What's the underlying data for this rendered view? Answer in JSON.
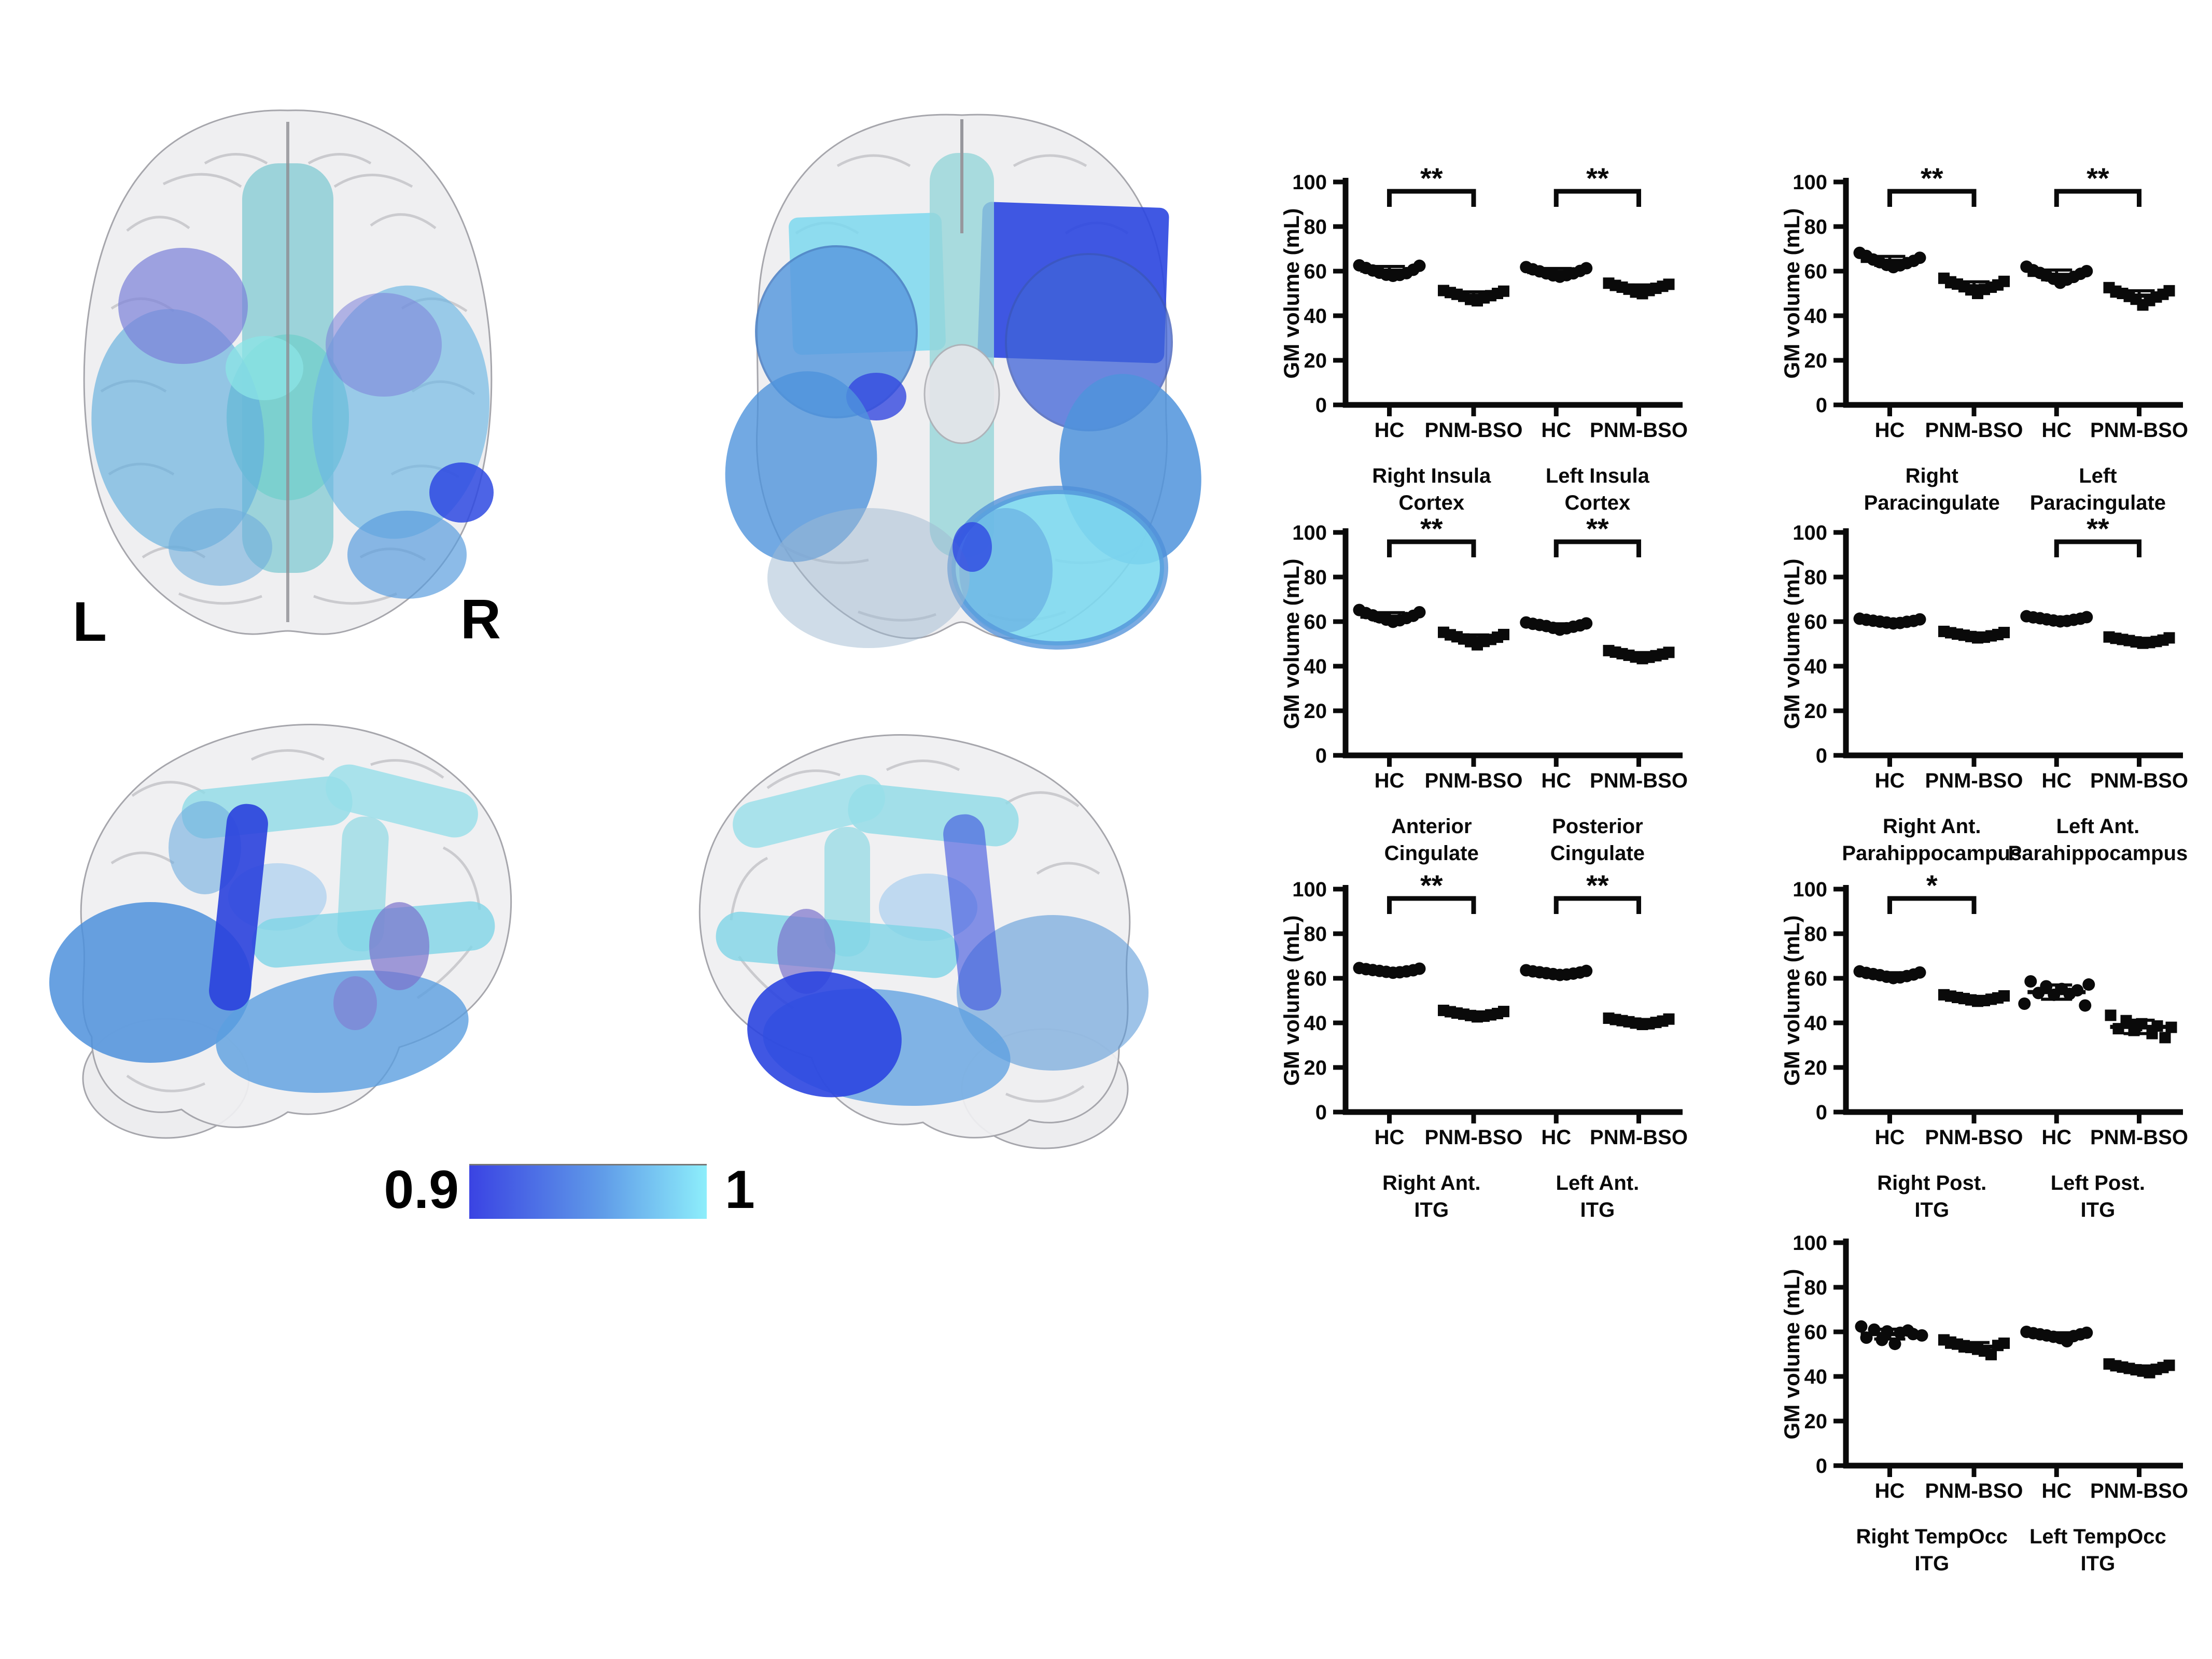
{
  "brain_figure": {
    "left_hemisphere_label": "L",
    "right_hemisphere_label": "R",
    "views": [
      "superior-axial",
      "inferior-axial",
      "sagittal-lateral-left",
      "sagittal-lateral-right"
    ],
    "colorbar": {
      "min_label": "0.9",
      "max_label": "1",
      "start_color": "#3a43e3",
      "end_color": "#8deefb"
    }
  },
  "chart_style": {
    "marker_hc": "circle",
    "marker_pnmbso": "square",
    "ink_color": "#0a0a0a",
    "ylabel": "GM volume (mL)"
  },
  "chart_data": [
    {
      "id": "insula",
      "type": "scatter",
      "ylabel": "GM volume (mL)",
      "ylim": [
        0,
        100
      ],
      "yticks": [
        0,
        20,
        40,
        60,
        80,
        100
      ],
      "categories": [
        "HC",
        "PNM-BSO",
        "HC",
        "PNM-BSO"
      ],
      "pairs": [
        {
          "line1": "Right Insula",
          "line2": "Cortex",
          "sig": "**"
        },
        {
          "line1": "Left Insula",
          "line2": "Cortex",
          "sig": "**"
        }
      ],
      "groups": [
        {
          "label": "HC",
          "marker": "circle",
          "mean": 60.2,
          "sd": 1.9,
          "dx": [
            -58,
            -45,
            -32,
            -19,
            -6,
            7,
            20,
            33,
            46,
            58
          ],
          "y": [
            62.6,
            61.4,
            60.3,
            59.3,
            58.4,
            57.9,
            58.3,
            59.1,
            60.6,
            62.4
          ]
        },
        {
          "label": "PNM-BSO",
          "marker": "square",
          "mean": 49.0,
          "sd": 1.7,
          "dx": [
            -58,
            -45,
            -32,
            -19,
            -6,
            7,
            20,
            33,
            46,
            58
          ],
          "y": [
            51.3,
            50.4,
            49.6,
            48.7,
            47.3,
            46.7,
            48.0,
            49.0,
            50.0,
            51.0
          ]
        },
        {
          "label": "HC",
          "marker": "circle",
          "mean": 59.6,
          "sd": 1.6,
          "dx": [
            -58,
            -45,
            -32,
            -19,
            -6,
            7,
            20,
            33,
            46,
            58
          ],
          "y": [
            61.8,
            60.8,
            59.9,
            59.0,
            58.1,
            57.5,
            58.2,
            59.0,
            60.1,
            61.3
          ]
        },
        {
          "label": "PNM-BSO",
          "marker": "square",
          "mean": 52.2,
          "sd": 1.6,
          "dx": [
            -58,
            -45,
            -32,
            -19,
            -6,
            7,
            20,
            33,
            46,
            58
          ],
          "y": [
            54.6,
            53.6,
            52.8,
            51.9,
            50.6,
            49.9,
            51.3,
            52.3,
            53.2,
            54.1
          ]
        }
      ]
    },
    {
      "id": "paracingulate",
      "type": "scatter",
      "ylabel": "GM volume (mL)",
      "ylim": [
        0,
        100
      ],
      "yticks": [
        0,
        20,
        40,
        60,
        80,
        100
      ],
      "categories": [
        "HC",
        "PNM-BSO",
        "HC",
        "PNM-BSO"
      ],
      "pairs": [
        {
          "line1": "Right",
          "line2": "Paracingulate",
          "sig": "**"
        },
        {
          "line1": "Left",
          "line2": "Paracingulate",
          "sig": "**"
        }
      ],
      "groups": [
        {
          "label": "HC",
          "marker": "circle",
          "mean": 64.6,
          "sd": 2.0,
          "dx": [
            -58,
            -45,
            -32,
            -19,
            -6,
            7,
            20,
            33,
            46,
            58
          ],
          "y": [
            68.2,
            66.8,
            65.2,
            64.0,
            62.8,
            61.8,
            62.6,
            63.6,
            64.6,
            66.0
          ]
        },
        {
          "label": "PNM-BSO",
          "marker": "square",
          "mean": 53.2,
          "sd": 2.0,
          "dx": [
            -58,
            -45,
            -32,
            -19,
            -6,
            7,
            20,
            33,
            46,
            58
          ],
          "y": [
            56.8,
            55.2,
            54.2,
            53.0,
            51.6,
            50.0,
            51.8,
            52.8,
            53.8,
            55.4
          ]
        },
        {
          "label": "HC",
          "marker": "circle",
          "mean": 58.3,
          "sd": 2.2,
          "dx": [
            -58,
            -45,
            -32,
            -19,
            -6,
            7,
            20,
            33,
            46,
            58
          ],
          "y": [
            62.0,
            60.4,
            59.2,
            58.0,
            56.6,
            54.8,
            56.2,
            57.4,
            58.8,
            60.0
          ]
        },
        {
          "label": "PNM-BSO",
          "marker": "square",
          "mean": 49.0,
          "sd": 2.2,
          "dx": [
            -58,
            -45,
            -32,
            -19,
            -6,
            7,
            20,
            33,
            46,
            58
          ],
          "y": [
            52.6,
            51.0,
            50.0,
            48.8,
            47.4,
            44.8,
            46.8,
            48.4,
            49.6,
            51.2
          ]
        }
      ]
    },
    {
      "id": "cingulate",
      "type": "scatter",
      "ylabel": "GM volume (mL)",
      "ylim": [
        0,
        100
      ],
      "yticks": [
        0,
        20,
        40,
        60,
        80,
        100
      ],
      "categories": [
        "HC",
        "PNM-BSO",
        "HC",
        "PNM-BSO"
      ],
      "pairs": [
        {
          "line1": "Anterior",
          "line2": "Cingulate",
          "sig": "**"
        },
        {
          "line1": "Posterior",
          "line2": "Cingulate",
          "sig": "**"
        }
      ],
      "groups": [
        {
          "label": "HC",
          "marker": "circle",
          "mean": 62.2,
          "sd": 1.8,
          "dx": [
            -58,
            -45,
            -32,
            -19,
            -6,
            7,
            20,
            33,
            46,
            58
          ],
          "y": [
            65.2,
            63.8,
            62.8,
            61.9,
            60.9,
            59.9,
            60.6,
            61.6,
            62.6,
            64.2
          ]
        },
        {
          "label": "PNM-BSO",
          "marker": "square",
          "mean": 52.4,
          "sd": 1.6,
          "dx": [
            -58,
            -45,
            -32,
            -19,
            -6,
            7,
            20,
            33,
            46,
            58
          ],
          "y": [
            55.2,
            54.1,
            53.2,
            52.2,
            51.0,
            49.6,
            51.1,
            52.0,
            53.0,
            54.2
          ]
        },
        {
          "label": "HC",
          "marker": "circle",
          "mean": 58.0,
          "sd": 1.0,
          "dx": [
            -58,
            -45,
            -32,
            -19,
            -6,
            7,
            20,
            33,
            46,
            58
          ],
          "y": [
            59.6,
            59.0,
            58.5,
            58.0,
            57.2,
            56.4,
            57.0,
            57.7,
            58.3,
            59.2
          ]
        },
        {
          "label": "PNM-BSO",
          "marker": "square",
          "mean": 45.0,
          "sd": 1.1,
          "dx": [
            -58,
            -45,
            -32,
            -19,
            -6,
            7,
            20,
            33,
            46,
            58
          ],
          "y": [
            47.0,
            46.3,
            45.6,
            44.9,
            44.1,
            43.4,
            44.0,
            44.7,
            45.4,
            46.2
          ]
        }
      ]
    },
    {
      "id": "parahippocampus",
      "type": "scatter",
      "ylabel": "GM volume (mL)",
      "ylim": [
        0,
        100
      ],
      "yticks": [
        0,
        20,
        40,
        60,
        80,
        100
      ],
      "categories": [
        "HC",
        "PNM-BSO",
        "HC",
        "PNM-BSO"
      ],
      "pairs": [
        {
          "line1": "Right Ant.",
          "line2": "Parahippocampus",
          "sig": null
        },
        {
          "line1": "Left Ant.",
          "line2": "Parahippocampus",
          "sig": "**"
        }
      ],
      "groups": [
        {
          "label": "HC",
          "marker": "circle",
          "mean": 60.1,
          "sd": 0.7,
          "dx": [
            -58,
            -45,
            -32,
            -19,
            -6,
            7,
            20,
            33,
            46,
            58
          ],
          "y": [
            61.3,
            60.8,
            60.4,
            60.0,
            59.6,
            59.2,
            59.4,
            59.9,
            60.3,
            61.0
          ]
        },
        {
          "label": "PNM-BSO",
          "marker": "square",
          "mean": 54.0,
          "sd": 0.9,
          "dx": [
            -58,
            -45,
            -32,
            -19,
            -6,
            7,
            20,
            33,
            46,
            58
          ],
          "y": [
            55.6,
            55.0,
            54.4,
            53.9,
            53.3,
            52.7,
            53.0,
            53.6,
            54.2,
            55.1
          ]
        },
        {
          "label": "HC",
          "marker": "circle",
          "mean": 61.2,
          "sd": 0.8,
          "dx": [
            -58,
            -45,
            -32,
            -19,
            -6,
            7,
            20,
            33,
            46,
            58
          ],
          "y": [
            62.4,
            61.9,
            61.5,
            61.0,
            60.5,
            60.1,
            60.3,
            60.8,
            61.3,
            62.0
          ]
        },
        {
          "label": "PNM-BSO",
          "marker": "square",
          "mean": 51.6,
          "sd": 0.9,
          "dx": [
            -58,
            -45,
            -32,
            -19,
            -6,
            7,
            20,
            33,
            46,
            58
          ],
          "y": [
            53.1,
            52.5,
            52.0,
            51.5,
            50.9,
            50.3,
            50.6,
            51.1,
            51.7,
            52.7
          ]
        }
      ]
    },
    {
      "id": "ant_itg",
      "type": "scatter",
      "ylabel": "GM volume (mL)",
      "ylim": [
        0,
        100
      ],
      "yticks": [
        0,
        20,
        40,
        60,
        80,
        100
      ],
      "categories": [
        "HC",
        "PNM-BSO",
        "HC",
        "PNM-BSO"
      ],
      "pairs": [
        {
          "line1": "Right Ant.",
          "line2": "ITG",
          "sig": "**"
        },
        {
          "line1": "Left Ant.",
          "line2": "ITG",
          "sig": "**"
        }
      ],
      "groups": [
        {
          "label": "HC",
          "marker": "circle",
          "mean": 63.5,
          "sd": 0.7,
          "dx": [
            -58,
            -45,
            -32,
            -19,
            -6,
            7,
            20,
            33,
            46,
            58
          ],
          "y": [
            64.6,
            64.1,
            63.7,
            63.3,
            62.9,
            62.5,
            62.7,
            63.1,
            63.6,
            64.3
          ]
        },
        {
          "label": "PNM-BSO",
          "marker": "square",
          "mean": 44.0,
          "sd": 0.9,
          "dx": [
            -58,
            -45,
            -32,
            -19,
            -6,
            7,
            20,
            33,
            46,
            58
          ],
          "y": [
            45.6,
            45.0,
            44.4,
            43.9,
            43.3,
            42.7,
            43.0,
            43.6,
            44.2,
            45.1
          ]
        },
        {
          "label": "HC",
          "marker": "circle",
          "mean": 62.5,
          "sd": 0.7,
          "dx": [
            -58,
            -45,
            -32,
            -19,
            -6,
            7,
            20,
            33,
            46,
            58
          ],
          "y": [
            63.6,
            63.1,
            62.7,
            62.3,
            61.9,
            61.5,
            61.7,
            62.1,
            62.6,
            63.3
          ]
        },
        {
          "label": "PNM-BSO",
          "marker": "square",
          "mean": 40.6,
          "sd": 0.9,
          "dx": [
            -58,
            -45,
            -32,
            -19,
            -6,
            7,
            20,
            33,
            46,
            58
          ],
          "y": [
            42.1,
            41.5,
            41.0,
            40.5,
            39.9,
            39.3,
            39.6,
            40.2,
            40.8,
            41.7
          ]
        }
      ]
    },
    {
      "id": "post_itg",
      "type": "scatter",
      "ylabel": "GM volume (mL)",
      "ylim": [
        0,
        100
      ],
      "yticks": [
        0,
        20,
        40,
        60,
        80,
        100
      ],
      "categories": [
        "HC",
        "PNM-BSO",
        "HC",
        "PNM-BSO"
      ],
      "pairs": [
        {
          "line1": "Right Post.",
          "line2": "ITG",
          "sig": "*"
        },
        {
          "line1": "Left Post.",
          "line2": "ITG",
          "sig": null
        }
      ],
      "groups": [
        {
          "label": "HC",
          "marker": "circle",
          "mean": 61.5,
          "sd": 1.0,
          "dx": [
            -58,
            -45,
            -32,
            -19,
            -6,
            7,
            20,
            33,
            46,
            58
          ],
          "y": [
            63.1,
            62.4,
            61.9,
            61.4,
            60.7,
            60.1,
            60.4,
            61.0,
            61.7,
            62.6
          ]
        },
        {
          "label": "PNM-BSO",
          "marker": "square",
          "mean": 51.0,
          "sd": 0.9,
          "dx": [
            -58,
            -45,
            -32,
            -19,
            -6,
            7,
            20,
            33,
            46,
            58
          ],
          "y": [
            52.6,
            52.0,
            51.4,
            50.9,
            50.3,
            49.7,
            50.0,
            50.6,
            51.2,
            52.1
          ]
        },
        {
          "label": "HC",
          "marker": "circle",
          "mean": 53.8,
          "sd": 3.2,
          "dx": [
            -50,
            -20,
            10,
            40,
            62,
            -35,
            -5,
            25,
            55,
            -62
          ],
          "y": [
            58.6,
            56.4,
            55.2,
            54.6,
            57.2,
            53.4,
            52.6,
            53.0,
            47.8,
            48.6
          ]
        },
        {
          "label": "PNM-BSO",
          "marker": "square",
          "mean": 38.2,
          "sd": 3.0,
          "dx": [
            -55,
            -25,
            5,
            35,
            62,
            -40,
            -10,
            25,
            50,
            -5
          ],
          "y": [
            43.4,
            41.0,
            39.6,
            38.6,
            38.0,
            37.4,
            36.6,
            35.2,
            33.4,
            38.8
          ]
        }
      ]
    },
    {
      "id": "tempocc_itg",
      "type": "scatter",
      "ylabel": "GM volume (mL)",
      "ylim": [
        0,
        100
      ],
      "yticks": [
        0,
        20,
        40,
        60,
        80,
        100
      ],
      "categories": [
        "HC",
        "PNM-BSO",
        "HC",
        "PNM-BSO"
      ],
      "pairs": [
        {
          "line1": "Right TempOcc",
          "line2": "ITG",
          "sig": null
        },
        {
          "line1": "Left TempOcc",
          "line2": "ITG",
          "sig": null
        }
      ],
      "groups": [
        {
          "label": "HC",
          "marker": "circle",
          "mean": 59.0,
          "sd": 2.2,
          "dx": [
            -55,
            -30,
            -5,
            20,
            45,
            62,
            -45,
            -15,
            10,
            35
          ],
          "y": [
            62.4,
            61.0,
            60.2,
            59.6,
            59.0,
            58.4,
            57.4,
            56.4,
            54.6,
            60.6
          ]
        },
        {
          "label": "PNM-BSO",
          "marker": "square",
          "mean": 53.3,
          "sd": 1.9,
          "dx": [
            -58,
            -45,
            -32,
            -19,
            -6,
            7,
            20,
            33,
            46,
            58
          ],
          "y": [
            56.4,
            55.4,
            54.5,
            53.8,
            53.0,
            52.2,
            51.4,
            49.8,
            53.9,
            54.9
          ]
        },
        {
          "label": "HC",
          "marker": "circle",
          "mean": 58.4,
          "sd": 1.2,
          "dx": [
            -58,
            -45,
            -32,
            -19,
            -6,
            7,
            20,
            33,
            46,
            58
          ],
          "y": [
            60.0,
            59.4,
            58.9,
            58.4,
            57.8,
            57.2,
            55.8,
            58.1,
            58.9,
            59.6
          ]
        },
        {
          "label": "PNM-BSO",
          "marker": "square",
          "mean": 43.5,
          "sd": 1.2,
          "dx": [
            -58,
            -45,
            -32,
            -19,
            -6,
            7,
            20,
            33,
            46,
            58
          ],
          "y": [
            45.6,
            44.8,
            44.2,
            43.6,
            43.0,
            42.4,
            41.7,
            43.2,
            44.0,
            45.0
          ]
        }
      ]
    }
  ]
}
